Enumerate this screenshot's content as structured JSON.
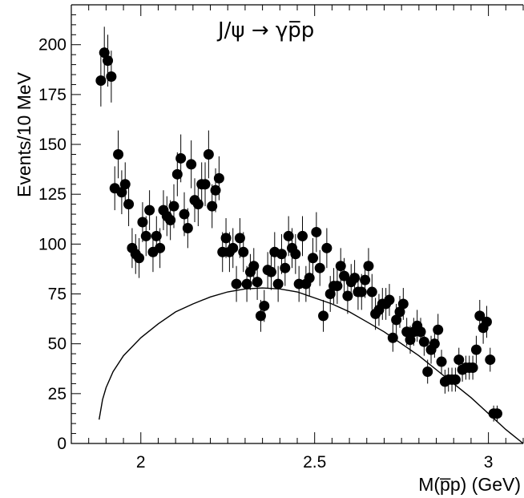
{
  "chart_data": {
    "type": "scatter",
    "title": "J/ψ → γp̅p",
    "xlabel": "M(p̅p)  (GeV)",
    "ylabel": "Events/10 MeV",
    "xlim": [
      1.8,
      3.1
    ],
    "ylim": [
      0,
      220
    ],
    "x_ticks": [
      2,
      2.5,
      3
    ],
    "x_tick_labels": [
      "2",
      "2.5",
      "3"
    ],
    "y_ticks": [
      0,
      25,
      50,
      75,
      100,
      125,
      150,
      175,
      200
    ],
    "y_tick_labels": [
      "0",
      "25",
      "50",
      "75",
      "100",
      "125",
      "150",
      "175",
      "200"
    ],
    "grid": false,
    "points": [
      {
        "x": 1.885,
        "y": 182,
        "err": 13
      },
      {
        "x": 1.895,
        "y": 196,
        "err": 13
      },
      {
        "x": 1.905,
        "y": 192,
        "err": 13
      },
      {
        "x": 1.915,
        "y": 184,
        "err": 13
      },
      {
        "x": 1.925,
        "y": 128,
        "err": 11
      },
      {
        "x": 1.935,
        "y": 145,
        "err": 12
      },
      {
        "x": 1.945,
        "y": 126,
        "err": 11
      },
      {
        "x": 1.955,
        "y": 130,
        "err": 11
      },
      {
        "x": 1.965,
        "y": 120,
        "err": 11
      },
      {
        "x": 1.975,
        "y": 98,
        "err": 10
      },
      {
        "x": 1.985,
        "y": 95,
        "err": 10
      },
      {
        "x": 1.995,
        "y": 93,
        "err": 10
      },
      {
        "x": 2.005,
        "y": 111,
        "err": 10
      },
      {
        "x": 2.015,
        "y": 104,
        "err": 10
      },
      {
        "x": 2.025,
        "y": 117,
        "err": 10
      },
      {
        "x": 2.035,
        "y": 96,
        "err": 10
      },
      {
        "x": 2.045,
        "y": 104,
        "err": 10
      },
      {
        "x": 2.055,
        "y": 98,
        "err": 10
      },
      {
        "x": 2.065,
        "y": 117,
        "err": 10
      },
      {
        "x": 2.075,
        "y": 114,
        "err": 10
      },
      {
        "x": 2.085,
        "y": 112,
        "err": 10
      },
      {
        "x": 2.095,
        "y": 119,
        "err": 11
      },
      {
        "x": 2.105,
        "y": 135,
        "err": 11
      },
      {
        "x": 2.115,
        "y": 143,
        "err": 12
      },
      {
        "x": 2.125,
        "y": 115,
        "err": 11
      },
      {
        "x": 2.135,
        "y": 108,
        "err": 10
      },
      {
        "x": 2.145,
        "y": 140,
        "err": 12
      },
      {
        "x": 2.155,
        "y": 122,
        "err": 11
      },
      {
        "x": 2.165,
        "y": 120,
        "err": 11
      },
      {
        "x": 2.175,
        "y": 130,
        "err": 11
      },
      {
        "x": 2.185,
        "y": 130,
        "err": 11
      },
      {
        "x": 2.195,
        "y": 145,
        "err": 12
      },
      {
        "x": 2.205,
        "y": 119,
        "err": 11
      },
      {
        "x": 2.215,
        "y": 127,
        "err": 11
      },
      {
        "x": 2.225,
        "y": 133,
        "err": 11
      },
      {
        "x": 2.235,
        "y": 96,
        "err": 10
      },
      {
        "x": 2.245,
        "y": 103,
        "err": 10
      },
      {
        "x": 2.255,
        "y": 96,
        "err": 10
      },
      {
        "x": 2.265,
        "y": 98,
        "err": 10
      },
      {
        "x": 2.275,
        "y": 80,
        "err": 9
      },
      {
        "x": 2.285,
        "y": 103,
        "err": 10
      },
      {
        "x": 2.295,
        "y": 96,
        "err": 10
      },
      {
        "x": 2.305,
        "y": 80,
        "err": 9
      },
      {
        "x": 2.315,
        "y": 86,
        "err": 9
      },
      {
        "x": 2.325,
        "y": 89,
        "err": 9
      },
      {
        "x": 2.335,
        "y": 81,
        "err": 9
      },
      {
        "x": 2.345,
        "y": 64,
        "err": 8
      },
      {
        "x": 2.355,
        "y": 69,
        "err": 8
      },
      {
        "x": 2.365,
        "y": 87,
        "err": 9
      },
      {
        "x": 2.375,
        "y": 86,
        "err": 9
      },
      {
        "x": 2.385,
        "y": 96,
        "err": 10
      },
      {
        "x": 2.395,
        "y": 80,
        "err": 9
      },
      {
        "x": 2.405,
        "y": 95,
        "err": 10
      },
      {
        "x": 2.415,
        "y": 88,
        "err": 9
      },
      {
        "x": 2.425,
        "y": 104,
        "err": 10
      },
      {
        "x": 2.435,
        "y": 98,
        "err": 10
      },
      {
        "x": 2.445,
        "y": 95,
        "err": 10
      },
      {
        "x": 2.455,
        "y": 80,
        "err": 9
      },
      {
        "x": 2.465,
        "y": 104,
        "err": 10
      },
      {
        "x": 2.475,
        "y": 80,
        "err": 9
      },
      {
        "x": 2.485,
        "y": 83,
        "err": 9
      },
      {
        "x": 2.495,
        "y": 93,
        "err": 10
      },
      {
        "x": 2.505,
        "y": 106,
        "err": 10
      },
      {
        "x": 2.515,
        "y": 88,
        "err": 9
      },
      {
        "x": 2.525,
        "y": 64,
        "err": 8
      },
      {
        "x": 2.535,
        "y": 98,
        "err": 10
      },
      {
        "x": 2.545,
        "y": 75,
        "err": 9
      },
      {
        "x": 2.555,
        "y": 79,
        "err": 9
      },
      {
        "x": 2.565,
        "y": 79,
        "err": 9
      },
      {
        "x": 2.575,
        "y": 89,
        "err": 9
      },
      {
        "x": 2.585,
        "y": 84,
        "err": 9
      },
      {
        "x": 2.595,
        "y": 74,
        "err": 9
      },
      {
        "x": 2.605,
        "y": 81,
        "err": 9
      },
      {
        "x": 2.615,
        "y": 83,
        "err": 9
      },
      {
        "x": 2.625,
        "y": 76,
        "err": 9
      },
      {
        "x": 2.635,
        "y": 76,
        "err": 9
      },
      {
        "x": 2.645,
        "y": 82,
        "err": 9
      },
      {
        "x": 2.655,
        "y": 89,
        "err": 9
      },
      {
        "x": 2.665,
        "y": 76,
        "err": 9
      },
      {
        "x": 2.675,
        "y": 65,
        "err": 8
      },
      {
        "x": 2.685,
        "y": 67,
        "err": 8
      },
      {
        "x": 2.695,
        "y": 70,
        "err": 8
      },
      {
        "x": 2.705,
        "y": 70,
        "err": 8
      },
      {
        "x": 2.715,
        "y": 72,
        "err": 8
      },
      {
        "x": 2.725,
        "y": 53,
        "err": 7
      },
      {
        "x": 2.735,
        "y": 62,
        "err": 8
      },
      {
        "x": 2.745,
        "y": 66,
        "err": 8
      },
      {
        "x": 2.755,
        "y": 70,
        "err": 8
      },
      {
        "x": 2.765,
        "y": 56,
        "err": 7
      },
      {
        "x": 2.775,
        "y": 52,
        "err": 7
      },
      {
        "x": 2.785,
        "y": 56,
        "err": 7
      },
      {
        "x": 2.795,
        "y": 59,
        "err": 8
      },
      {
        "x": 2.805,
        "y": 56,
        "err": 7
      },
      {
        "x": 2.815,
        "y": 51,
        "err": 7
      },
      {
        "x": 2.825,
        "y": 36,
        "err": 6
      },
      {
        "x": 2.835,
        "y": 47,
        "err": 7
      },
      {
        "x": 2.845,
        "y": 50,
        "err": 7
      },
      {
        "x": 2.855,
        "y": 57,
        "err": 8
      },
      {
        "x": 2.865,
        "y": 41,
        "err": 6
      },
      {
        "x": 2.875,
        "y": 31,
        "err": 6
      },
      {
        "x": 2.885,
        "y": 32,
        "err": 6
      },
      {
        "x": 2.895,
        "y": 32,
        "err": 6
      },
      {
        "x": 2.905,
        "y": 32,
        "err": 6
      },
      {
        "x": 2.915,
        "y": 42,
        "err": 6
      },
      {
        "x": 2.925,
        "y": 37,
        "err": 6
      },
      {
        "x": 2.935,
        "y": 38,
        "err": 6
      },
      {
        "x": 2.945,
        "y": 38,
        "err": 6
      },
      {
        "x": 2.955,
        "y": 38,
        "err": 6
      },
      {
        "x": 2.965,
        "y": 47,
        "err": 7
      },
      {
        "x": 2.975,
        "y": 64,
        "err": 8
      },
      {
        "x": 2.985,
        "y": 58,
        "err": 8
      },
      {
        "x": 2.995,
        "y": 61,
        "err": 8
      },
      {
        "x": 3.005,
        "y": 42,
        "err": 6
      },
      {
        "x": 3.015,
        "y": 15,
        "err": 4
      },
      {
        "x": 3.025,
        "y": 15,
        "err": 4
      }
    ],
    "curve": {
      "x": [
        1.88,
        1.89,
        1.9,
        1.92,
        1.95,
        2.0,
        2.05,
        2.1,
        2.15,
        2.2,
        2.25,
        2.3,
        2.35,
        2.4,
        2.45,
        2.5,
        2.55,
        2.6,
        2.65,
        2.7,
        2.75,
        2.8,
        2.85,
        2.9,
        2.95,
        3.0,
        3.05,
        3.1
      ],
      "y": [
        12,
        22,
        28,
        36,
        44,
        53,
        60,
        66,
        70,
        73.5,
        76,
        77.5,
        78,
        77.5,
        76,
        73,
        70,
        66,
        61,
        56,
        50,
        44,
        37,
        30,
        23,
        15,
        7,
        0
      ]
    }
  }
}
